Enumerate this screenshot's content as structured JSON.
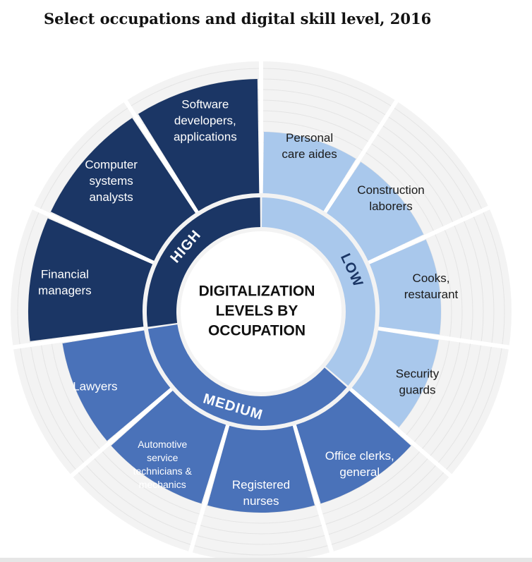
{
  "title": "Select occupations and digital skill level, 2016",
  "center_label": [
    "DIGITALIZATION",
    "LEVELS BY",
    "OCCUPATION"
  ],
  "colors": {
    "high": "#1b3665",
    "medium": "#4a72b9",
    "low": "#a9c8ec",
    "background_ring": "#f3f3f3",
    "background_line": "#e4e4e4",
    "label_dark": "#1a1a1a",
    "label_light": "#ffffff"
  },
  "chart_data": {
    "type": "radial-bar",
    "title": "Select occupations and digital skill level, 2016",
    "levels": [
      {
        "name": "HIGH",
        "key": "high"
      },
      {
        "name": "LOW",
        "key": "low"
      },
      {
        "name": "MEDIUM",
        "key": "medium"
      }
    ],
    "occupations": [
      {
        "name": "Personal care aides",
        "lines": [
          "Personal",
          "care aides"
        ],
        "level": "low"
      },
      {
        "name": "Construction laborers",
        "lines": [
          "Construction",
          "laborers"
        ],
        "level": "low"
      },
      {
        "name": "Cooks, restaurant",
        "lines": [
          "Cooks,",
          "restaurant"
        ],
        "level": "low"
      },
      {
        "name": "Security guards",
        "lines": [
          "Security",
          "guards"
        ],
        "level": "low"
      },
      {
        "name": "Office clerks, general",
        "lines": [
          "Office clerks,",
          "general"
        ],
        "level": "medium"
      },
      {
        "name": "Registered nurses",
        "lines": [
          "Registered",
          "nurses"
        ],
        "level": "medium"
      },
      {
        "name": "Automotive service technicians & mechanics",
        "lines": [
          "Automotive",
          "service",
          "technicians &",
          "mechanics"
        ],
        "level": "medium"
      },
      {
        "name": "Lawyers",
        "lines": [
          "Lawyers"
        ],
        "level": "medium"
      },
      {
        "name": "Financial managers",
        "lines": [
          "Financial",
          "managers"
        ],
        "level": "high"
      },
      {
        "name": "Computer systems analysts",
        "lines": [
          "Computer",
          "systems",
          "analysts"
        ],
        "level": "high"
      },
      {
        "name": "Software developers, applications",
        "lines": [
          "Software",
          "developers,",
          "applications"
        ],
        "level": "high"
      }
    ]
  }
}
